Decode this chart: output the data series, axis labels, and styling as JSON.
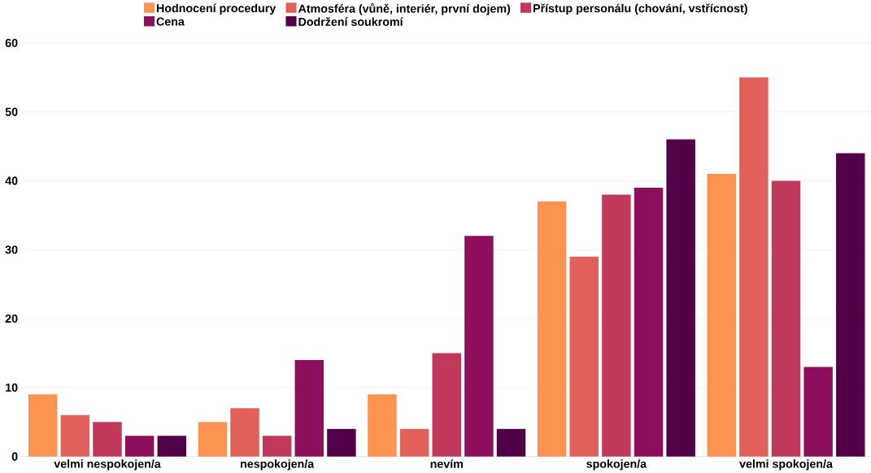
{
  "chart_data": {
    "type": "bar",
    "categories": [
      "velmi nespokojen/a",
      "nespokojen/a",
      "nevím",
      "spokojen/a",
      "velmi spokojen/a"
    ],
    "series": [
      {
        "name": "Hodnocení procedury",
        "color": "#fd9350",
        "values": [
          9,
          5,
          9,
          37,
          41
        ]
      },
      {
        "name": "Atmosféra (vůně, interiér, první dojem)",
        "color": "#e2605a",
        "values": [
          6,
          7,
          4,
          29,
          55
        ]
      },
      {
        "name": "Přístup personálu (chování, vstřícnost)",
        "color": "#c0385a",
        "values": [
          5,
          3,
          15,
          38,
          40
        ]
      },
      {
        "name": "Cena",
        "color": "#8c0e5c",
        "values": [
          3,
          14,
          32,
          39,
          13
        ]
      },
      {
        "name": "Dodržení soukromí",
        "color": "#520048",
        "values": [
          3,
          4,
          4,
          46,
          44
        ]
      }
    ],
    "ylim": [
      0,
      60
    ],
    "yticks": [
      0,
      10,
      20,
      30,
      40,
      50,
      60
    ],
    "grid": "y",
    "legend": "top"
  }
}
